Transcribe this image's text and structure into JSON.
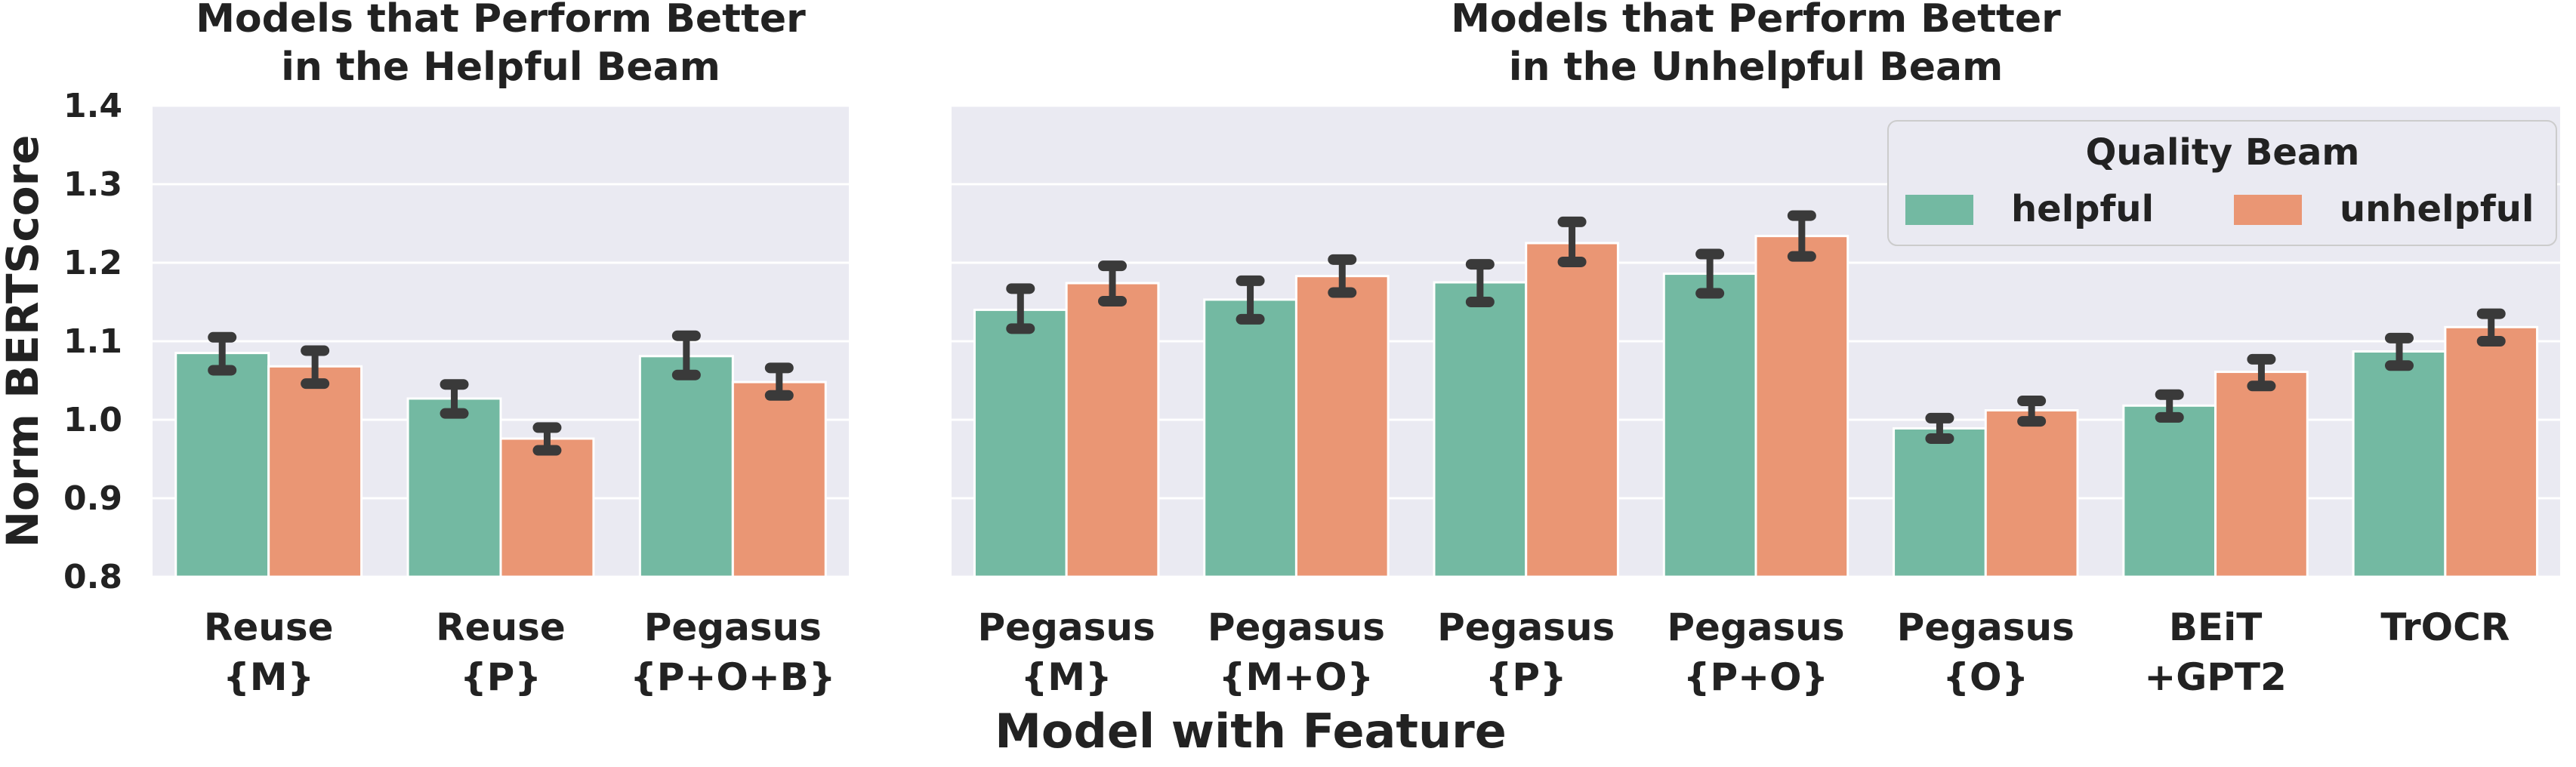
{
  "figure": {
    "xlabel": "Model with Feature",
    "ylabel": "Norm BERTScore",
    "yticks": [
      "0.8",
      "0.9",
      "1.0",
      "1.1",
      "1.2",
      "1.3",
      "1.4"
    ],
    "legend": {
      "title": "Quality Beam",
      "entries": [
        {
          "label": "helpful",
          "color": "#73b9a2"
        },
        {
          "label": "unhelpful",
          "color": "#ea9674"
        }
      ],
      "placement": "top-right"
    },
    "plot_background": "#eaeaf2",
    "grid_color": "#ffffff",
    "errorbar_color": "#3a3a3a"
  },
  "chart_data": [
    {
      "type": "bar",
      "title_lines": [
        "Models that Perform Better",
        "in the Helpful Beam"
      ],
      "categories": [
        [
          "Reuse",
          "{M}"
        ],
        [
          "Reuse",
          "{P}"
        ],
        [
          "Pegasus",
          "{P+O+B}"
        ]
      ],
      "ylim": [
        0.8,
        1.4
      ],
      "grid": true,
      "series": [
        {
          "name": "helpful",
          "color": "#73b9a2",
          "values": [
            1.085,
            1.027,
            1.081
          ],
          "err_low": [
            1.063,
            1.008,
            1.057
          ],
          "err_high": [
            1.105,
            1.045,
            1.107
          ]
        },
        {
          "name": "unhelpful",
          "color": "#ea9674",
          "values": [
            1.068,
            0.976,
            1.048
          ],
          "err_low": [
            1.046,
            0.961,
            1.031
          ],
          "err_high": [
            1.088,
            0.99,
            1.066
          ]
        }
      ]
    },
    {
      "type": "bar",
      "title_lines": [
        "Models that Perform Better",
        "in the Unhelpful Beam"
      ],
      "categories": [
        [
          "Pegasus",
          "{M}"
        ],
        [
          "Pegasus",
          "{M+O}"
        ],
        [
          "Pegasus",
          "{P}"
        ],
        [
          "Pegasus",
          "{P+O}"
        ],
        [
          "Pegasus",
          "{O}"
        ],
        [
          "BEiT",
          "+GPT2"
        ],
        [
          "TrOCR",
          ""
        ]
      ],
      "ylim": [
        0.8,
        1.4
      ],
      "grid": true,
      "series": [
        {
          "name": "helpful",
          "color": "#73b9a2",
          "values": [
            1.14,
            1.153,
            1.175,
            1.186,
            0.989,
            1.018,
            1.087
          ],
          "err_low": [
            1.116,
            1.128,
            1.15,
            1.161,
            0.976,
            1.003,
            1.069
          ],
          "err_high": [
            1.167,
            1.177,
            1.198,
            1.211,
            1.002,
            1.032,
            1.104
          ]
        },
        {
          "name": "unhelpful",
          "color": "#ea9674",
          "values": [
            1.174,
            1.183,
            1.225,
            1.234,
            1.012,
            1.061,
            1.118
          ],
          "err_low": [
            1.151,
            1.162,
            1.201,
            1.208,
            0.998,
            1.043,
            1.1
          ],
          "err_high": [
            1.196,
            1.204,
            1.252,
            1.26,
            1.024,
            1.077,
            1.135
          ]
        }
      ]
    }
  ]
}
